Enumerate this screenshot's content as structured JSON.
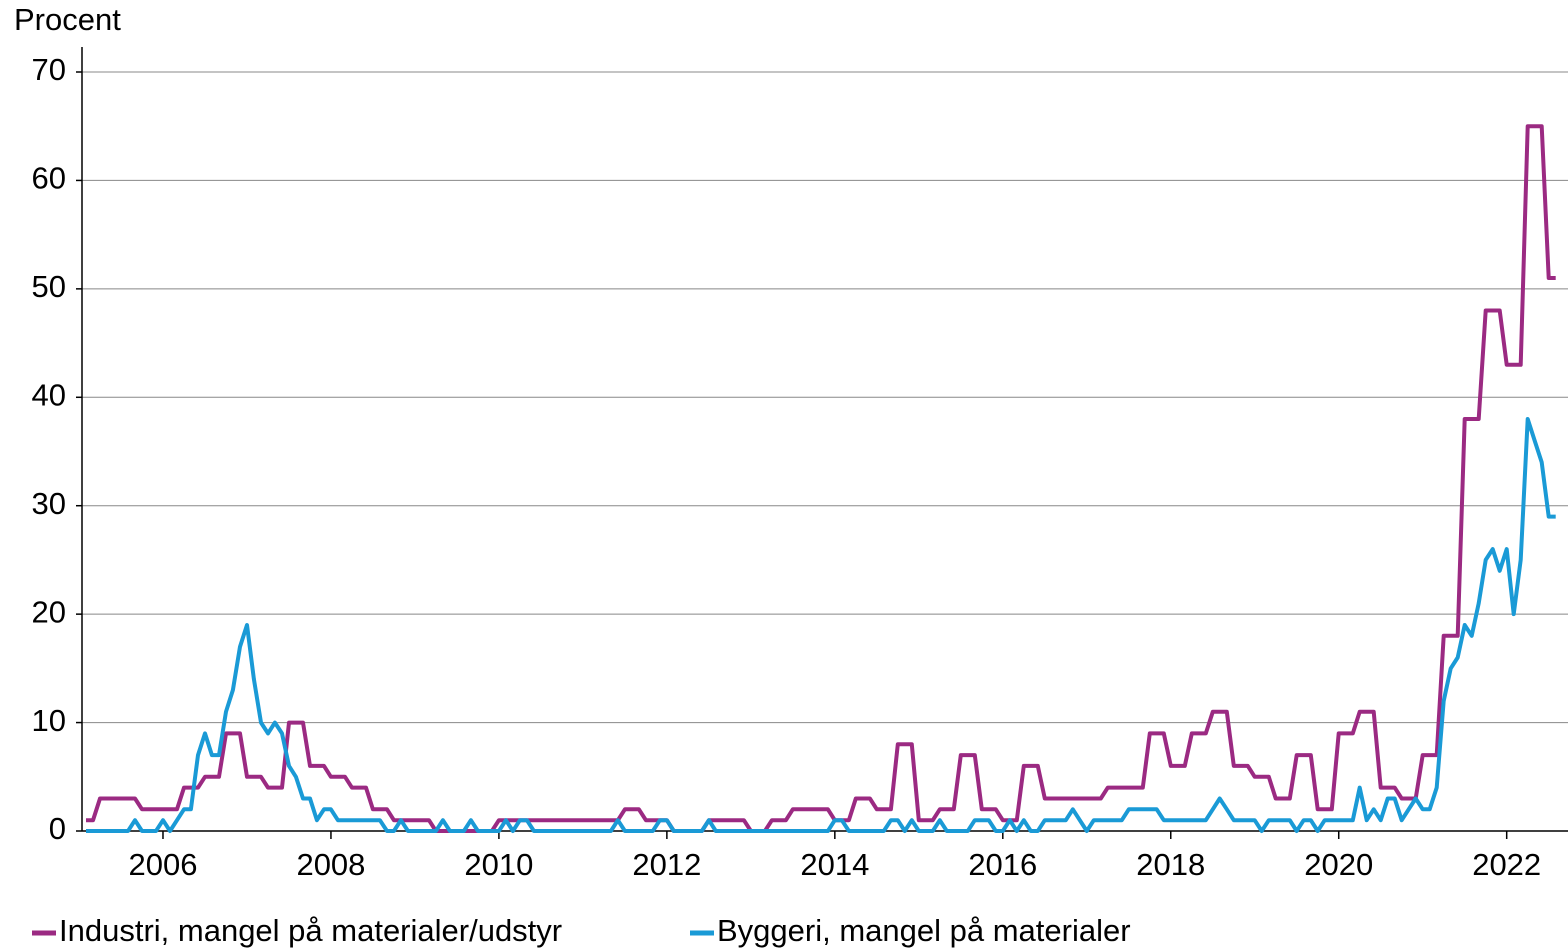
{
  "chart_data": {
    "type": "line",
    "y_label": "Procent",
    "x": [
      2005.083,
      2005.167,
      2005.25,
      2005.333,
      2005.417,
      2005.5,
      2005.583,
      2005.667,
      2005.75,
      2005.833,
      2005.917,
      2006,
      2006.083,
      2006.167,
      2006.25,
      2006.333,
      2006.417,
      2006.5,
      2006.583,
      2006.667,
      2006.75,
      2006.833,
      2006.917,
      2007,
      2007.083,
      2007.167,
      2007.25,
      2007.333,
      2007.417,
      2007.5,
      2007.583,
      2007.667,
      2007.75,
      2007.833,
      2007.917,
      2008,
      2008.083,
      2008.167,
      2008.25,
      2008.333,
      2008.417,
      2008.5,
      2008.583,
      2008.667,
      2008.75,
      2008.833,
      2008.917,
      2009,
      2009.083,
      2009.167,
      2009.25,
      2009.333,
      2009.417,
      2009.5,
      2009.583,
      2009.667,
      2009.75,
      2009.833,
      2009.917,
      2010,
      2010.083,
      2010.167,
      2010.25,
      2010.333,
      2010.417,
      2010.5,
      2010.583,
      2010.667,
      2010.75,
      2010.833,
      2010.917,
      2011,
      2011.083,
      2011.167,
      2011.25,
      2011.333,
      2011.417,
      2011.5,
      2011.583,
      2011.667,
      2011.75,
      2011.833,
      2011.917,
      2012,
      2012.083,
      2012.167,
      2012.25,
      2012.333,
      2012.417,
      2012.5,
      2012.583,
      2012.667,
      2012.75,
      2012.833,
      2012.917,
      2013,
      2013.083,
      2013.167,
      2013.25,
      2013.333,
      2013.417,
      2013.5,
      2013.583,
      2013.667,
      2013.75,
      2013.833,
      2013.917,
      2014,
      2014.083,
      2014.167,
      2014.25,
      2014.333,
      2014.417,
      2014.5,
      2014.583,
      2014.667,
      2014.75,
      2014.833,
      2014.917,
      2015,
      2015.083,
      2015.167,
      2015.25,
      2015.333,
      2015.417,
      2015.5,
      2015.583,
      2015.667,
      2015.75,
      2015.833,
      2015.917,
      2016,
      2016.083,
      2016.167,
      2016.25,
      2016.333,
      2016.417,
      2016.5,
      2016.583,
      2016.667,
      2016.75,
      2016.833,
      2016.917,
      2017,
      2017.083,
      2017.167,
      2017.25,
      2017.333,
      2017.417,
      2017.5,
      2017.583,
      2017.667,
      2017.75,
      2017.833,
      2017.917,
      2018,
      2018.083,
      2018.167,
      2018.25,
      2018.333,
      2018.417,
      2018.5,
      2018.583,
      2018.667,
      2018.75,
      2018.833,
      2018.917,
      2019,
      2019.083,
      2019.167,
      2019.25,
      2019.333,
      2019.417,
      2019.5,
      2019.583,
      2019.667,
      2019.75,
      2019.833,
      2019.917,
      2020,
      2020.083,
      2020.167,
      2020.25,
      2020.333,
      2020.417,
      2020.5,
      2020.583,
      2020.667,
      2020.75,
      2020.833,
      2020.917,
      2021,
      2021.083,
      2021.167,
      2021.25,
      2021.333,
      2021.417,
      2021.5,
      2021.583,
      2021.667,
      2021.75,
      2021.833,
      2021.917,
      2022,
      2022.083,
      2022.167,
      2022.25,
      2022.333,
      2022.417,
      2022.5,
      2022.583
    ],
    "series": [
      {
        "name": "Industri, mangel på materialer/udstyr",
        "color": "#9b2a82",
        "values": [
          1,
          1,
          3,
          3,
          3,
          3,
          3,
          3,
          2,
          2,
          2,
          2,
          2,
          2,
          4,
          4,
          4,
          5,
          5,
          5,
          9,
          9,
          9,
          5,
          5,
          5,
          4,
          4,
          4,
          10,
          10,
          10,
          6,
          6,
          6,
          5,
          5,
          5,
          4,
          4,
          4,
          2,
          2,
          2,
          1,
          1,
          1,
          1,
          1,
          1,
          0,
          0,
          0,
          0,
          0,
          0,
          0,
          0,
          0,
          1,
          1,
          1,
          1,
          1,
          1,
          1,
          1,
          1,
          1,
          1,
          1,
          1,
          1,
          1,
          1,
          1,
          1,
          2,
          2,
          2,
          1,
          1,
          1,
          1,
          0,
          0,
          0,
          0,
          0,
          1,
          1,
          1,
          1,
          1,
          1,
          0,
          0,
          0,
          1,
          1,
          1,
          2,
          2,
          2,
          2,
          2,
          2,
          1,
          1,
          1,
          3,
          3,
          3,
          2,
          2,
          2,
          8,
          8,
          8,
          1,
          1,
          1,
          2,
          2,
          2,
          7,
          7,
          7,
          2,
          2,
          2,
          1,
          1,
          1,
          6,
          6,
          6,
          3,
          3,
          3,
          3,
          3,
          3,
          3,
          3,
          3,
          4,
          4,
          4,
          4,
          4,
          4,
          9,
          9,
          9,
          6,
          6,
          6,
          9,
          9,
          9,
          11,
          11,
          11,
          6,
          6,
          6,
          5,
          5,
          5,
          3,
          3,
          3,
          7,
          7,
          7,
          2,
          2,
          2,
          9,
          9,
          9,
          11,
          11,
          11,
          4,
          4,
          4,
          3,
          3,
          3,
          7,
          7,
          7,
          18,
          18,
          18,
          38,
          38,
          38,
          48,
          48,
          48,
          43,
          43,
          43,
          65,
          65,
          65,
          51,
          51
        ]
      },
      {
        "name": "Byggeri, mangel på materialer",
        "color": "#1a9ad6",
        "values": [
          0,
          0,
          0,
          0,
          0,
          0,
          0,
          1,
          0,
          0,
          0,
          1,
          0,
          1,
          2,
          2,
          7,
          9,
          7,
          7,
          11,
          13,
          17,
          19,
          14,
          10,
          9,
          10,
          9,
          6,
          5,
          3,
          3,
          1,
          2,
          2,
          1,
          1,
          1,
          1,
          1,
          1,
          1,
          0,
          0,
          1,
          0,
          0,
          0,
          0,
          0,
          1,
          0,
          0,
          0,
          1,
          0,
          0,
          0,
          0,
          1,
          0,
          1,
          1,
          0,
          0,
          0,
          0,
          0,
          0,
          0,
          0,
          0,
          0,
          0,
          0,
          1,
          0,
          0,
          0,
          0,
          0,
          1,
          1,
          0,
          0,
          0,
          0,
          0,
          1,
          0,
          0,
          0,
          0,
          0,
          0,
          0,
          0,
          0,
          0,
          0,
          0,
          0,
          0,
          0,
          0,
          0,
          1,
          1,
          0,
          0,
          0,
          0,
          0,
          0,
          1,
          1,
          0,
          1,
          0,
          0,
          0,
          1,
          0,
          0,
          0,
          0,
          1,
          1,
          1,
          0,
          0,
          1,
          0,
          1,
          0,
          0,
          1,
          1,
          1,
          1,
          2,
          1,
          0,
          1,
          1,
          1,
          1,
          1,
          2,
          2,
          2,
          2,
          2,
          1,
          1,
          1,
          1,
          1,
          1,
          1,
          2,
          3,
          2,
          1,
          1,
          1,
          1,
          0,
          1,
          1,
          1,
          1,
          0,
          1,
          1,
          0,
          1,
          1,
          1,
          1,
          1,
          4,
          1,
          2,
          1,
          3,
          3,
          1,
          2,
          3,
          2,
          2,
          4,
          12,
          15,
          16,
          19,
          18,
          21,
          25,
          26,
          24,
          26,
          20,
          25,
          38,
          36,
          34,
          29,
          29
        ]
      }
    ],
    "xlim": [
      2005,
      2022.73
    ],
    "xticks": [
      2006,
      2008,
      2010,
      2012,
      2014,
      2016,
      2018,
      2020,
      2022
    ],
    "ylim": [
      0,
      70
    ],
    "yticks": [
      0,
      10,
      20,
      30,
      40,
      50,
      60,
      70
    ],
    "grid": true,
    "legend": "bottom"
  }
}
